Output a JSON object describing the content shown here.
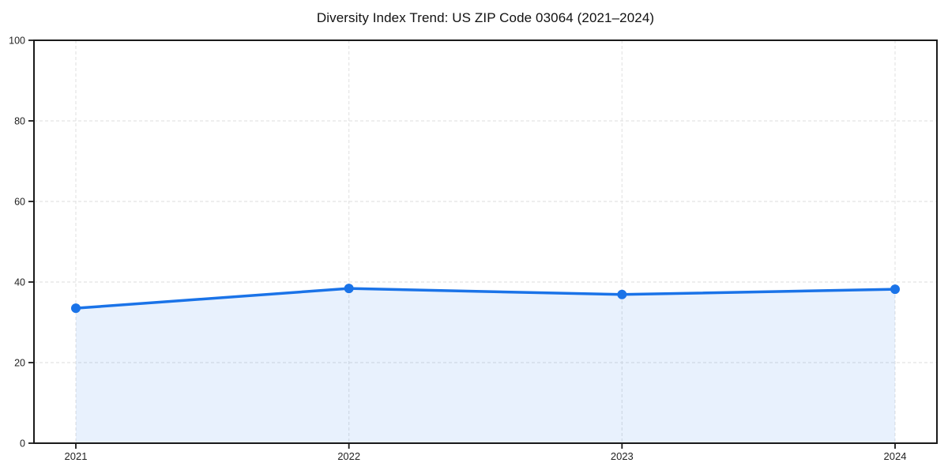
{
  "chart_data": {
    "type": "area",
    "title": "Diversity Index Trend: US ZIP Code 03064 (2021–2024)",
    "categories": [
      "2021",
      "2022",
      "2023",
      "2024"
    ],
    "series": [
      {
        "name": "Diversity Index",
        "values": [
          33.5,
          38.4,
          36.9,
          38.2
        ]
      }
    ],
    "xlabel": "",
    "ylabel": "",
    "ylim": [
      0,
      100
    ],
    "yticks": [
      0,
      20,
      40,
      60,
      80,
      100
    ],
    "grid": true,
    "grid_style": "dashed",
    "legend_position": "none",
    "marker_shape": "circle",
    "colors": {
      "line": "#1a73e8",
      "marker": "#1a73e8",
      "fill": "#1a73e8",
      "fill_opacity": "0.10",
      "grid": "#e4e4e4",
      "axis": "#1a1a1a",
      "text": "#222222",
      "background": "#ffffff"
    }
  }
}
